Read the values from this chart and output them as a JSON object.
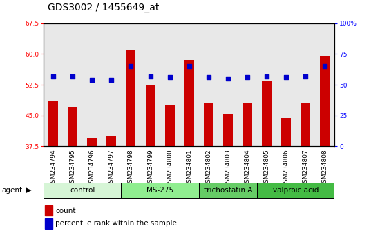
{
  "title": "GDS3002 / 1455649_at",
  "samples": [
    "GSM234794",
    "GSM234795",
    "GSM234796",
    "GSM234797",
    "GSM234798",
    "GSM234799",
    "GSM234800",
    "GSM234801",
    "GSM234802",
    "GSM234803",
    "GSM234804",
    "GSM234805",
    "GSM234806",
    "GSM234807",
    "GSM234808"
  ],
  "counts": [
    48.5,
    47.2,
    39.5,
    40.0,
    61.0,
    52.5,
    47.5,
    58.5,
    48.0,
    45.5,
    48.0,
    53.5,
    44.5,
    48.0,
    59.5
  ],
  "percentiles": [
    57,
    57,
    54,
    54,
    65,
    57,
    56,
    65,
    56,
    55,
    56,
    57,
    56,
    57,
    65
  ],
  "ylim_left": [
    37.5,
    67.5
  ],
  "ylim_right": [
    0,
    100
  ],
  "yticks_left": [
    37.5,
    45.0,
    52.5,
    60.0,
    67.5
  ],
  "yticks_right": [
    0,
    25,
    50,
    75,
    100
  ],
  "groups": [
    {
      "label": "control",
      "start": 0,
      "end": 4,
      "color": "#d6f5d6"
    },
    {
      "label": "MS-275",
      "start": 4,
      "end": 8,
      "color": "#90ee90"
    },
    {
      "label": "trichostatin A",
      "start": 8,
      "end": 11,
      "color": "#66cc66"
    },
    {
      "label": "valproic acid",
      "start": 11,
      "end": 15,
      "color": "#44bb44"
    }
  ],
  "bar_color": "#cc0000",
  "dot_color": "#0000cc",
  "bar_width": 0.5,
  "background_color": "#ffffff",
  "plot_bg_color": "#e8e8e8",
  "xtick_bg_color": "#d0d0d0",
  "title_fontsize": 10,
  "tick_fontsize": 6.5,
  "group_fontsize": 7.5,
  "legend_fontsize": 7.5
}
